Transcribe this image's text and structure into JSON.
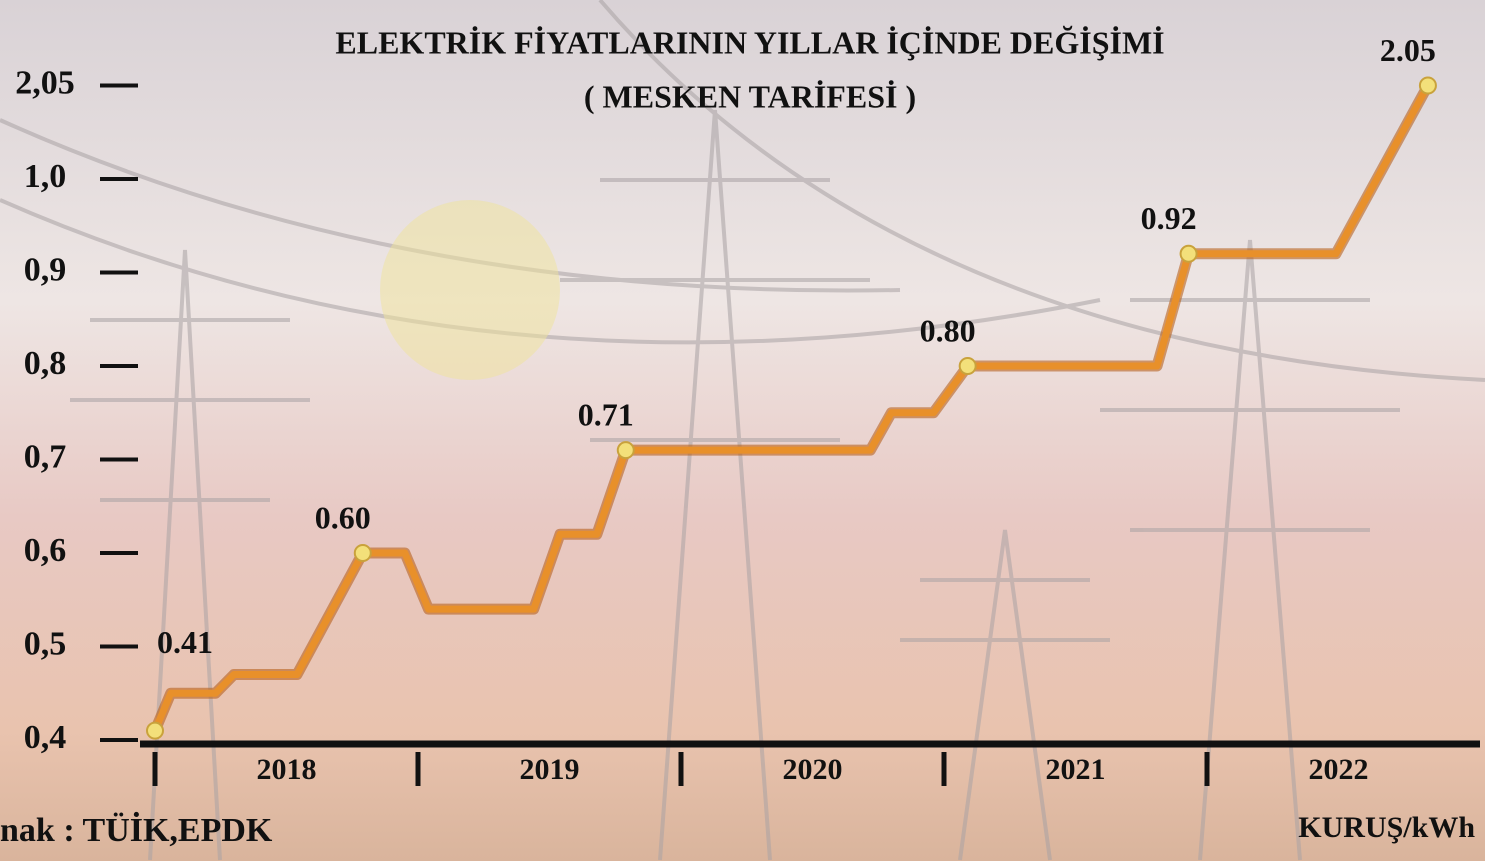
{
  "chart_data": {
    "type": "line",
    "title": "ELEKTRİK FİYATLARININ YILLAR İÇİNDE DEĞİŞİMİ",
    "subtitle": "( MESKEN TARİFESİ )",
    "source": "nak : TÜİK,EPDK",
    "unit_label": "KURUŞ/kWh",
    "x": [
      2018.0,
      2018.06,
      2018.23,
      2018.3,
      2018.54,
      2018.79,
      2018.95,
      2019.04,
      2019.44,
      2019.54,
      2019.68,
      2019.79,
      2020.72,
      2020.8,
      2020.96,
      2021.09,
      2021.81,
      2021.93,
      2022.49,
      2022.84
    ],
    "series": [
      {
        "name": null,
        "color": "#e8902a",
        "values": [
          0.41,
          0.45,
          0.45,
          0.47,
          0.47,
          0.6,
          0.6,
          0.54,
          0.54,
          0.62,
          0.62,
          0.71,
          0.71,
          0.75,
          0.75,
          0.8,
          0.8,
          0.92,
          0.92,
          2.05
        ],
        "value_labels": [
          "0.41",
          null,
          null,
          null,
          null,
          "0.60",
          null,
          null,
          null,
          null,
          null,
          "0.71",
          null,
          null,
          null,
          "0.80",
          null,
          "0.92",
          null,
          "2.05"
        ]
      }
    ],
    "xlim": [
      2018,
      2023
    ],
    "xticks": [
      2018,
      2019,
      2020,
      2021,
      2022
    ],
    "ylim": [
      0.4,
      2.05
    ],
    "yticks": [
      {
        "value": 0.4,
        "label": "0,4"
      },
      {
        "value": 0.5,
        "label": "0,5"
      },
      {
        "value": 0.6,
        "label": "0,6"
      },
      {
        "value": 0.7,
        "label": "0,7"
      },
      {
        "value": 0.8,
        "label": "0,8"
      },
      {
        "value": 0.9,
        "label": "0,9"
      },
      {
        "value": 1.0,
        "label": "1,0"
      },
      {
        "value": 2.05,
        "label": "2,05"
      }
    ],
    "broken_axis": true
  }
}
